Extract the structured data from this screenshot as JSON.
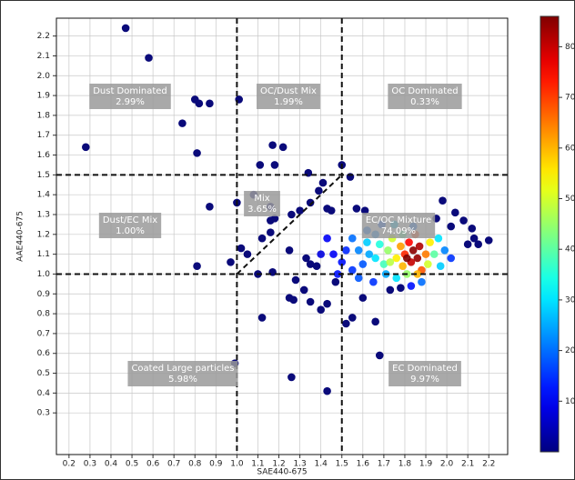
{
  "chart_data": {
    "type": "scatter",
    "x_label": "SAE440-675",
    "y_label": "AAE440-675",
    "xlim": [
      0.14,
      2.29
    ],
    "ylim": [
      0.09,
      2.29
    ],
    "xticks": [
      0.2,
      0.3,
      0.4,
      0.5,
      0.6,
      0.7,
      0.8,
      0.9,
      {
        "value": 1,
        "label": "1.0"
      },
      1.1,
      1.2,
      1.3,
      1.4,
      1.5,
      1.6,
      1.7,
      1.8,
      1.9,
      {
        "value": 2,
        "label": "2.0"
      },
      2.1,
      2.2
    ],
    "yticks": [
      0.3,
      0.4,
      0.5,
      0.6,
      0.7,
      0.8,
      0.9,
      {
        "value": 1,
        "label": "1.0"
      },
      1.1,
      1.2,
      1.3,
      1.4,
      1.5,
      1.6,
      1.7,
      1.8,
      1.9,
      {
        "value": 2,
        "label": "2.0"
      },
      2.1,
      2.2
    ],
    "grid": true,
    "vlines": [
      1.0,
      1.5
    ],
    "hlines": [
      1.0,
      1.5
    ],
    "clim": [
      0,
      86
    ],
    "cticks": [
      10,
      20,
      30,
      40,
      50,
      60,
      70,
      80
    ],
    "colormap": "jet",
    "regions": [
      {
        "label": "Dust Dominated",
        "share": "2.99%"
      },
      {
        "label": "OC/Dust Mix",
        "share": "1.99%"
      },
      {
        "label": "OC Dominated",
        "share": "0.33%"
      },
      {
        "label": "Dust/EC Mix",
        "share": "1.00%"
      },
      {
        "label": "Mix",
        "share": "3.65%"
      },
      {
        "label": "EC/OC Mixture",
        "share": "74.09%"
      },
      {
        "label": "Coated Large particles",
        "share": "5.98%"
      },
      {
        "label": "EC Dominated",
        "share": "9.97%"
      }
    ],
    "x": [
      0.47,
      0.58,
      0.28,
      0.8,
      0.82,
      0.87,
      0.74,
      0.81,
      0.87,
      0.81,
      1.01,
      1.11,
      1.17,
      1.22,
      1.18,
      1.34,
      1.54,
      1.5,
      1.08,
      1.0,
      1.16,
      1.18,
      1.16,
      0.97,
      1.02,
      1.05,
      1.12,
      1.16,
      1.1,
      1.17,
      1.26,
      1.3,
      1.35,
      1.39,
      1.41,
      1.25,
      1.33,
      1.35,
      1.38,
      1.28,
      1.32,
      1.25,
      1.27,
      1.35,
      1.4,
      1.43,
      1.47,
      1.52,
      1.55,
      1.66,
      1.6,
      1.12,
      0.99,
      1.26,
      1.43,
      1.68,
      1.73,
      1.78,
      1.98,
      2.04,
      2.08,
      2.12,
      2.13,
      2.15,
      2.2,
      2.1,
      1.95,
      2.02,
      1.57,
      1.61,
      1.43,
      1.45,
      1.6,
      1.63,
      1.58,
      1.55,
      1.62,
      1.66,
      1.68,
      1.7,
      1.72,
      1.74,
      1.76,
      1.78,
      1.79,
      1.8,
      1.82,
      1.83,
      1.84,
      1.86,
      1.87,
      1.85,
      1.88,
      1.9,
      1.92,
      1.91,
      1.94,
      1.96,
      1.97,
      1.99,
      2.02,
      1.81,
      1.76,
      1.71,
      1.66,
      1.75,
      1.84,
      1.55,
      1.5,
      1.52,
      1.46,
      1.48,
      1.58,
      1.65,
      1.88,
      1.83,
      1.79,
      1.69,
      1.43,
      1.4,
      1.62,
      1.73,
      1.86,
      1.81
    ],
    "values": [
      2.24,
      2.09,
      1.64,
      1.88,
      1.86,
      1.86,
      1.76,
      1.61,
      1.34,
      1.04,
      1.88,
      1.55,
      1.65,
      1.64,
      1.55,
      1.51,
      1.49,
      1.55,
      1.4,
      1.36,
      1.34,
      1.28,
      1.27,
      1.06,
      1.13,
      1.1,
      1.18,
      1.21,
      1.0,
      1.01,
      1.3,
      1.32,
      1.36,
      1.42,
      1.46,
      1.12,
      1.08,
      1.05,
      1.04,
      0.97,
      0.92,
      0.88,
      0.87,
      0.86,
      0.82,
      0.85,
      0.96,
      0.75,
      0.78,
      0.76,
      0.88,
      0.78,
      0.55,
      0.48,
      0.41,
      0.59,
      0.92,
      0.93,
      1.37,
      1.31,
      1.27,
      1.23,
      1.18,
      1.15,
      1.17,
      1.15,
      1.28,
      1.24,
      1.33,
      1.32,
      1.33,
      1.32,
      1.05,
      1.1,
      1.12,
      1.18,
      1.16,
      1.08,
      1.15,
      1.05,
      1.12,
      1.18,
      1.08,
      1.14,
      1.04,
      1.1,
      1.16,
      1.06,
      1.12,
      1.08,
      1.14,
      1.2,
      1.02,
      1.1,
      1.16,
      1.05,
      1.1,
      1.18,
      1.04,
      1.12,
      1.08,
      1.0,
      0.98,
      1.0,
      1.2,
      1.25,
      1.24,
      1.02,
      1.06,
      1.12,
      1.1,
      1.0,
      0.98,
      0.96,
      0.96,
      0.94,
      1.2,
      1.25,
      1.18,
      1.1,
      1.22,
      1.06,
      1.0,
      1.08
    ],
    "intensity": [
      1,
      1,
      1,
      1,
      1,
      1,
      1,
      1,
      1,
      1,
      1,
      1,
      1,
      1,
      1,
      1,
      1,
      1,
      1,
      1,
      1,
      1,
      1,
      1,
      1,
      1,
      1,
      1,
      1,
      1,
      1,
      1,
      1,
      1,
      1,
      1,
      1,
      1,
      1,
      1,
      1,
      1,
      1,
      1,
      1,
      1,
      1,
      1,
      1,
      1,
      1,
      1,
      1,
      1,
      1,
      1,
      1,
      1,
      1,
      1,
      1,
      1,
      1,
      1,
      1,
      1,
      1,
      1,
      1,
      1,
      1,
      1,
      18,
      25,
      22,
      20,
      28,
      30,
      35,
      38,
      45,
      50,
      55,
      62,
      60,
      72,
      75,
      80,
      85,
      84,
      82,
      70,
      68,
      65,
      55,
      50,
      40,
      30,
      28,
      22,
      15,
      45,
      30,
      25,
      22,
      28,
      20,
      15,
      12,
      14,
      10,
      12,
      18,
      15,
      20,
      12,
      40,
      18,
      10,
      8,
      20,
      48,
      60,
      86
    ]
  }
}
